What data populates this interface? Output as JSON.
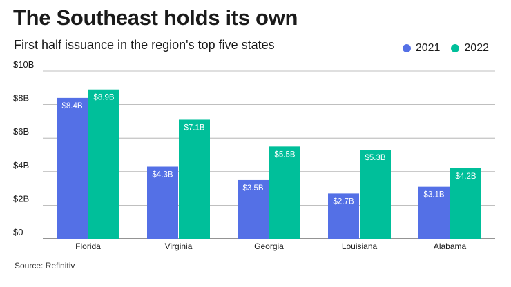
{
  "header": {
    "title": "The Southeast holds its own",
    "subtitle": "First half issuance in the region's top five states"
  },
  "footer": {
    "source": "Source: Refinitiv"
  },
  "colors": {
    "series_2021": "#5470e6",
    "series_2022": "#00bf9a",
    "grid": "#aaaaaa",
    "axis": "#555555"
  },
  "chart_data": {
    "type": "bar",
    "categories": [
      "Florida",
      "Virginia",
      "Georgia",
      "Louisiana",
      "Alabama"
    ],
    "series": [
      {
        "name": "2021",
        "values": [
          8.4,
          4.3,
          3.5,
          2.7,
          3.1
        ],
        "labels": [
          "$8.4B",
          "$4.3B",
          "$3.5B",
          "$2.7B",
          "$3.1B"
        ]
      },
      {
        "name": "2022",
        "values": [
          8.9,
          7.1,
          5.5,
          5.3,
          4.2
        ],
        "labels": [
          "$8.9B",
          "$7.1B",
          "$5.5B",
          "$5.3B",
          "$4.2B"
        ]
      }
    ],
    "yticks": [
      0,
      2,
      4,
      6,
      8,
      10
    ],
    "ytick_labels": [
      "$0",
      "$2B",
      "$4B",
      "$6B",
      "$8B",
      "$10B"
    ],
    "ylim": [
      0,
      10
    ],
    "grid": true,
    "legend_position": "top-right"
  }
}
